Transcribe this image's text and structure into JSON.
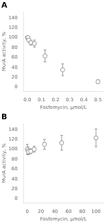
{
  "chart_data": [
    {
      "type": "scatter",
      "title": "A",
      "x": [
        0.0,
        0.005,
        0.01,
        0.025,
        0.05,
        0.125,
        0.25,
        0.5
      ],
      "values": [
        100,
        100,
        95,
        90,
        88,
        63,
        35,
        11
      ],
      "errors": [
        0,
        3,
        4,
        5,
        7,
        12,
        12,
        4
      ],
      "xlim": [
        -0.025,
        0.535
      ],
      "ylim": [
        -8,
        152
      ],
      "xticks": [
        {
          "value": 0.0,
          "label": "0.0"
        },
        0.1,
        0.2,
        0.3,
        0.4,
        0.5
      ],
      "yticks": [
        0,
        20,
        40,
        60,
        80,
        100,
        120,
        140
      ],
      "xlabel": "Fosfomycin, μmol/L",
      "ylabel": "MurA activity, %",
      "color": "#999999",
      "marker": "circle",
      "grid": false
    },
    {
      "type": "scatter",
      "title": "B",
      "x": [
        0.0,
        1.0,
        2.0,
        5.0,
        10.0,
        25.0,
        50.0,
        100.0
      ],
      "values": [
        100,
        97,
        95,
        96,
        100,
        110,
        113,
        123
      ],
      "errors": [
        10,
        8,
        6,
        5,
        6,
        10,
        15,
        18
      ],
      "xlim": [
        -5,
        110
      ],
      "ylim": [
        -8,
        152
      ],
      "xticks": [
        0,
        20,
        40,
        60,
        80,
        100
      ],
      "yticks": [
        0,
        20,
        40,
        60,
        80,
        100,
        120,
        140
      ],
      "xlabel": "Fosfomycin, μmol/L",
      "ylabel": "MurA activity, %",
      "color": "#999999",
      "marker": "circle",
      "grid": false
    }
  ]
}
